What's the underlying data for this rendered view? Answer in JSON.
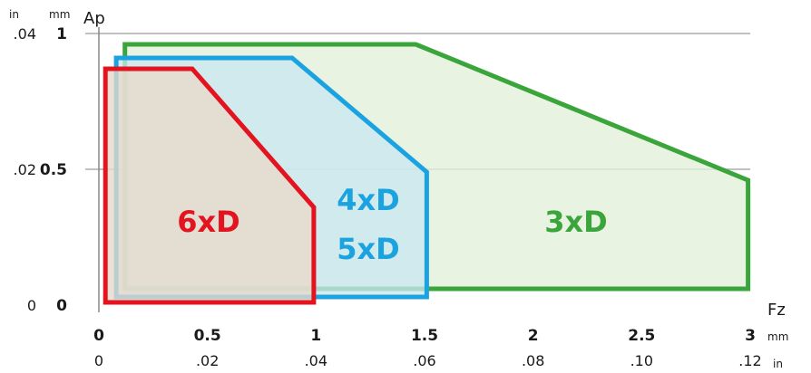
{
  "chart_data": {
    "type": "area",
    "title": "",
    "xlabel": "Fz",
    "ylabel": "Ap",
    "xlim": [
      0,
      3
    ],
    "ylim": [
      0,
      1
    ],
    "x_unit_primary": "mm",
    "x_unit_secondary": "in",
    "y_unit_primary": "mm",
    "y_unit_secondary": "in",
    "x_ticks_mm": [
      "0",
      "0.5",
      "1",
      "1.5",
      "2",
      "2.5",
      "3"
    ],
    "x_ticks_in": [
      "0",
      ".02",
      ".04",
      ".06",
      ".08",
      ".10",
      ".12"
    ],
    "y_ticks_mm": [
      "0",
      "0.5",
      "1"
    ],
    "y_ticks_in": [
      "0",
      ".02",
      ".04"
    ],
    "gridlines_y": [
      0.5,
      1
    ],
    "series": [
      {
        "name": "3xD",
        "color": "#3aa53a",
        "fill": "#e2efd9",
        "points": [
          [
            0.12,
            0.06
          ],
          [
            0.12,
            0.96
          ],
          [
            1.46,
            0.96
          ],
          [
            2.99,
            0.46
          ],
          [
            2.99,
            0.06
          ]
        ]
      },
      {
        "name": "4xD 5xD",
        "label_lines": [
          "4xD",
          "5xD"
        ],
        "color": "#1aa3e0",
        "fill": "#c9e7f0",
        "points": [
          [
            0.08,
            0.03
          ],
          [
            0.08,
            0.91
          ],
          [
            0.89,
            0.91
          ],
          [
            1.51,
            0.49
          ],
          [
            1.51,
            0.03
          ]
        ]
      },
      {
        "name": "6xD",
        "label_lines": [
          "6xD"
        ],
        "color": "#e3131f",
        "fill": "#e8d8cb",
        "points": [
          [
            0.03,
            0.01
          ],
          [
            0.03,
            0.87
          ],
          [
            0.43,
            0.87
          ],
          [
            0.99,
            0.36
          ],
          [
            0.99,
            0.01
          ]
        ]
      }
    ],
    "grid": true,
    "legend": "none"
  }
}
